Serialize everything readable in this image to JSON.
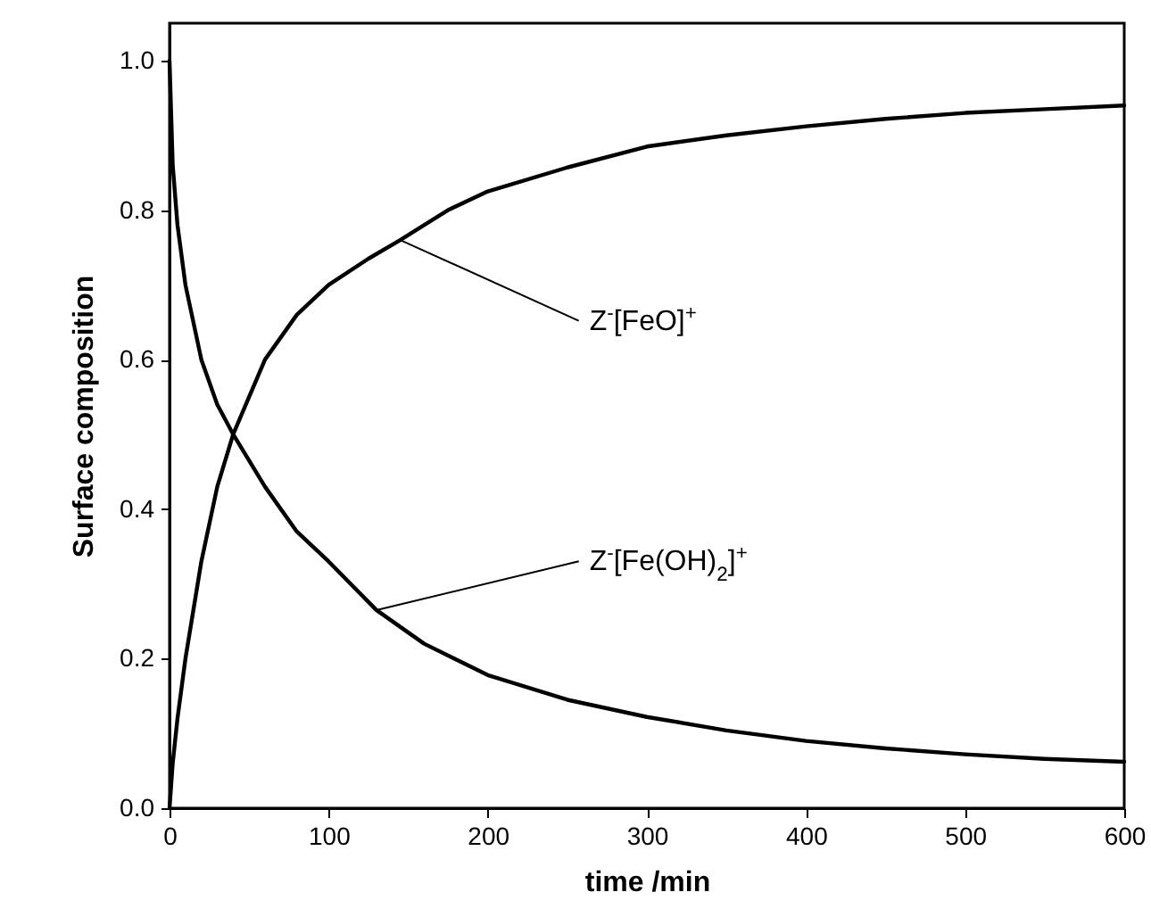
{
  "chart_data": {
    "type": "line",
    "xlabel": "time /min",
    "ylabel": "Surface composition",
    "xlim": [
      0,
      600
    ],
    "ylim": [
      0,
      1.05
    ],
    "xticks": [
      0,
      100,
      200,
      300,
      400,
      500,
      600
    ],
    "yticks": [
      {
        "value": 0,
        "label": "0.0"
      },
      {
        "value": 0.2,
        "label": "0.2"
      },
      {
        "value": 0.4,
        "label": "0.4"
      },
      {
        "value": 0.6,
        "label": "0.6"
      },
      {
        "value": 0.8,
        "label": "0.8"
      },
      {
        "value": 1,
        "label": "1.0"
      }
    ],
    "grid": false,
    "marker": "none",
    "line_style": "solid",
    "series": [
      {
        "color": "#000000",
        "x": [
          0,
          1,
          2,
          5,
          10,
          20,
          30,
          40,
          60,
          80,
          100,
          125,
          145,
          175,
          200,
          250,
          300,
          350,
          400,
          450,
          500,
          550,
          600
        ],
        "values": [
          0,
          0.03,
          0.06,
          0.12,
          0.2,
          0.33,
          0.43,
          0.5,
          0.6,
          0.66,
          0.7,
          0.735,
          0.76,
          0.8,
          0.825,
          0.857,
          0.885,
          0.9,
          0.912,
          0.922,
          0.93,
          0.935,
          0.94
        ]
      },
      {
        "color": "#000000",
        "x": [
          0,
          1,
          2,
          5,
          10,
          20,
          30,
          40,
          60,
          80,
          100,
          130,
          160,
          200,
          250,
          300,
          350,
          400,
          450,
          500,
          550,
          600
        ],
        "values": [
          1,
          0.93,
          0.86,
          0.78,
          0.7,
          0.6,
          0.54,
          0.5,
          0.43,
          0.37,
          0.33,
          0.265,
          0.22,
          0.178,
          0.145,
          0.122,
          0.104,
          0.09,
          0.08,
          0.072,
          0.066,
          0.062
        ]
      }
    ],
    "annotations": [
      {
        "text": "Z$^{-}$[FeO]$^{+}$",
        "x": 145,
        "y": 0.76
      },
      {
        "text": "Z$^{-}$[Fe(OH)$_{2}$]$^{+}$",
        "x": 130,
        "y": 0.265
      }
    ]
  }
}
